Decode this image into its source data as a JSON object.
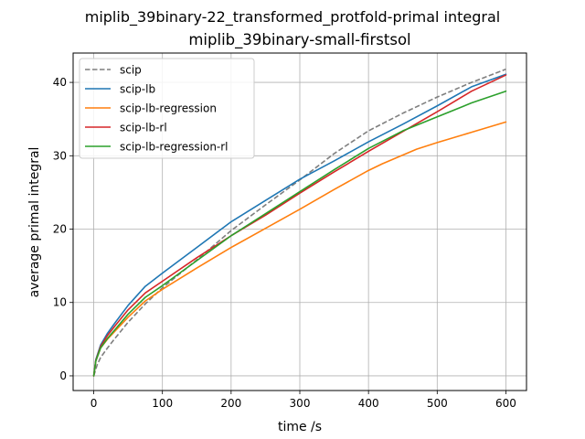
{
  "chart_data": {
    "type": "line",
    "suptitle": "miplib_39binary-22_transformed_protfold-primal integral",
    "title": "miplib_39binary-small-firstsol",
    "xlabel": "time /s",
    "ylabel": "average primal integral",
    "xlim": [
      -30,
      630
    ],
    "ylim": [
      -2,
      44
    ],
    "xticks": [
      0,
      100,
      200,
      300,
      400,
      500,
      600
    ],
    "yticks": [
      0,
      10,
      20,
      30,
      40
    ],
    "grid": true,
    "legend_position": "top-left",
    "series": [
      {
        "name": "scip",
        "color": "#7f7f7f",
        "dash": "dashed",
        "points": [
          [
            0,
            0
          ],
          [
            5,
            1.5
          ],
          [
            10,
            2.5
          ],
          [
            20,
            3.8
          ],
          [
            30,
            5.0
          ],
          [
            50,
            7.3
          ],
          [
            75,
            9.8
          ],
          [
            100,
            12.0
          ],
          [
            150,
            15.8
          ],
          [
            200,
            19.8
          ],
          [
            250,
            23.3
          ],
          [
            300,
            26.7
          ],
          [
            350,
            30.3
          ],
          [
            400,
            33.4
          ],
          [
            450,
            35.8
          ],
          [
            500,
            38.0
          ],
          [
            550,
            40.0
          ],
          [
            600,
            41.8
          ]
        ]
      },
      {
        "name": "scip-lb",
        "color": "#1f77b4",
        "dash": "solid",
        "points": [
          [
            0,
            0
          ],
          [
            3,
            2.2
          ],
          [
            10,
            4.2
          ],
          [
            20,
            5.8
          ],
          [
            30,
            7.1
          ],
          [
            50,
            9.6
          ],
          [
            75,
            12.2
          ],
          [
            100,
            14.0
          ],
          [
            150,
            17.5
          ],
          [
            200,
            21.0
          ],
          [
            250,
            23.9
          ],
          [
            300,
            26.8
          ],
          [
            350,
            29.3
          ],
          [
            400,
            31.9
          ],
          [
            450,
            34.3
          ],
          [
            500,
            36.8
          ],
          [
            550,
            39.4
          ],
          [
            600,
            41.1
          ]
        ]
      },
      {
        "name": "scip-lb-regression",
        "color": "#ff7f0e",
        "dash": "solid",
        "points": [
          [
            0,
            0
          ],
          [
            3,
            2.0
          ],
          [
            10,
            3.8
          ],
          [
            20,
            5.0
          ],
          [
            30,
            6.0
          ],
          [
            50,
            8.0
          ],
          [
            75,
            10.2
          ],
          [
            100,
            11.8
          ],
          [
            150,
            14.7
          ],
          [
            200,
            17.5
          ],
          [
            250,
            20.1
          ],
          [
            300,
            22.7
          ],
          [
            350,
            25.4
          ],
          [
            400,
            28.0
          ],
          [
            420,
            28.9
          ],
          [
            470,
            30.9
          ],
          [
            500,
            31.8
          ],
          [
            550,
            33.2
          ],
          [
            600,
            34.6
          ]
        ]
      },
      {
        "name": "scip-lb-rl",
        "color": "#d62728",
        "dash": "solid",
        "points": [
          [
            0,
            0
          ],
          [
            3,
            2.1
          ],
          [
            10,
            4.0
          ],
          [
            20,
            5.5
          ],
          [
            30,
            6.7
          ],
          [
            50,
            9.0
          ],
          [
            75,
            11.3
          ],
          [
            100,
            12.9
          ],
          [
            150,
            16.1
          ],
          [
            200,
            19.1
          ],
          [
            250,
            21.9
          ],
          [
            300,
            24.9
          ],
          [
            350,
            27.8
          ],
          [
            400,
            30.6
          ],
          [
            450,
            33.3
          ],
          [
            500,
            36.0
          ],
          [
            550,
            38.8
          ],
          [
            600,
            41.0
          ]
        ]
      },
      {
        "name": "scip-lb-regression-rl",
        "color": "#2ca02c",
        "dash": "solid",
        "points": [
          [
            0,
            0
          ],
          [
            3,
            2.0
          ],
          [
            10,
            3.8
          ],
          [
            20,
            5.1
          ],
          [
            30,
            6.2
          ],
          [
            50,
            8.4
          ],
          [
            75,
            10.7
          ],
          [
            100,
            12.3
          ],
          [
            150,
            15.7
          ],
          [
            200,
            19.1
          ],
          [
            250,
            22.1
          ],
          [
            300,
            25.1
          ],
          [
            350,
            28.1
          ],
          [
            400,
            31.0
          ],
          [
            450,
            33.4
          ],
          [
            500,
            35.3
          ],
          [
            550,
            37.2
          ],
          [
            600,
            38.8
          ]
        ]
      }
    ]
  }
}
